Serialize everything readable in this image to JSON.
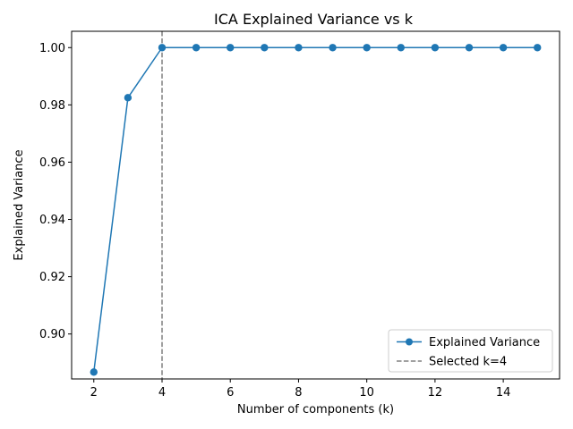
{
  "chart_data": {
    "type": "line",
    "title": "ICA Explained Variance vs k",
    "xlabel": "Number of components (k)",
    "ylabel": "Explained Variance",
    "xlim": [
      1.35,
      15.65
    ],
    "ylim": [
      0.8843,
      1.0057
    ],
    "x_ticks": [
      2,
      4,
      6,
      8,
      10,
      12,
      14
    ],
    "y_ticks": [
      0.9,
      0.92,
      0.94,
      0.96,
      0.98,
      1.0
    ],
    "y_tick_labels": [
      "0.90",
      "0.92",
      "0.94",
      "0.96",
      "0.98",
      "1.00"
    ],
    "grid": false,
    "legend_position": "lower-right",
    "series": [
      {
        "name": "Explained Variance",
        "color": "#1f77b4",
        "marker": "circle",
        "x": [
          2,
          3,
          4,
          5,
          6,
          7,
          8,
          9,
          10,
          11,
          12,
          13,
          14,
          15
        ],
        "values": [
          0.8867,
          0.9825,
          1.0,
          1.0,
          1.0,
          1.0,
          1.0,
          1.0,
          1.0,
          1.0,
          1.0,
          1.0,
          1.0,
          1.0
        ]
      }
    ],
    "vline": {
      "x": 4,
      "label": "Selected k=4",
      "color": "#808080",
      "style": "dashed"
    }
  }
}
